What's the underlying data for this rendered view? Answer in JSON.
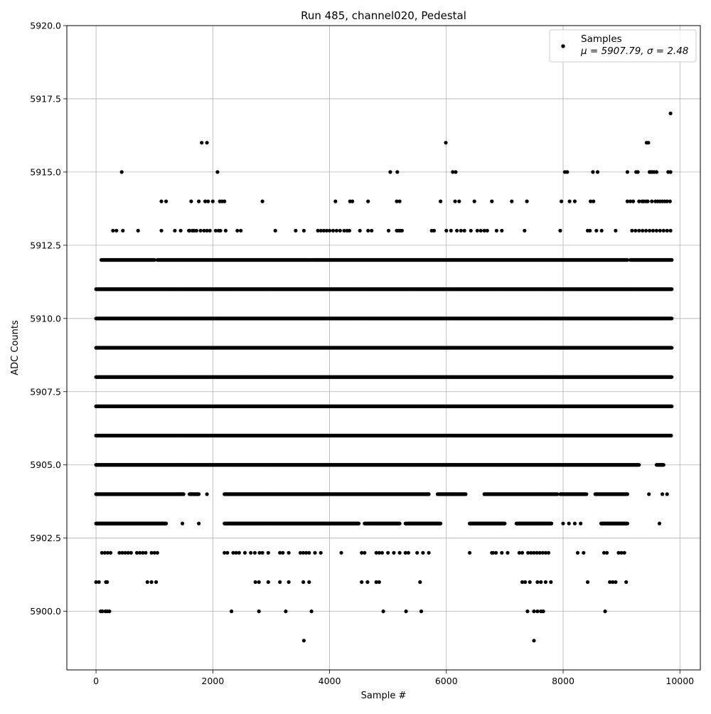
{
  "chart_data": {
    "type": "scatter",
    "title": "Run 485, channel020, Pedestal",
    "xlabel": "Sample #",
    "ylabel": "ADC Counts",
    "xlim": [
      -500,
      10350
    ],
    "ylim": [
      5898,
      5920
    ],
    "x_ticks": [
      0,
      2000,
      4000,
      6000,
      8000,
      10000
    ],
    "x_tick_labels": [
      "0",
      "2000",
      "4000",
      "6000",
      "8000",
      "10000"
    ],
    "y_ticks": [
      5900.0,
      5902.5,
      5905.0,
      5907.5,
      5910.0,
      5912.5,
      5915.0,
      5917.5,
      5920.0
    ],
    "y_tick_labels": [
      "5900.0",
      "5902.5",
      "5905.0",
      "5907.5",
      "5910.0",
      "5912.5",
      "5915.0",
      "5917.5",
      "5920.0"
    ],
    "grid": true,
    "legend_position": "top-right",
    "marker_color": "#000000",
    "series": [
      {
        "name": "Samples",
        "legend_stats": "μ = 5907.79, σ = 2.48",
        "level_coverage": [
          {
            "y": 5917,
            "x": [
              9840
            ]
          },
          {
            "y": 5916,
            "x": [
              1810,
              1900,
              5990,
              9430,
              9460
            ]
          },
          {
            "y": 5915,
            "x": [
              440,
              2080,
              5040,
              5160,
              6110,
              6160,
              8030,
              8070,
              8510,
              8590,
              9100,
              9250,
              9280,
              9480,
              9500,
              9530,
              9560,
              9600,
              9800,
              9840
            ]
          },
          {
            "y": 5914,
            "x": [
              1120,
              1200,
              1630,
              1760,
              1870,
              1920,
              2000,
              2120,
              2160,
              2200,
              2850,
              4100,
              4350,
              4390,
              4660,
              5150,
              5200,
              5900,
              6150,
              6220,
              6480,
              6780,
              7120,
              7380,
              7970,
              8110,
              8200,
              8470,
              8520,
              9100,
              9150,
              9200,
              9300,
              9350,
              9380,
              9420,
              9450,
              9520,
              9580,
              9620,
              9660,
              9700,
              9740,
              9780,
              9830
            ]
          },
          {
            "y": 5913,
            "x": [
              290,
              350,
              460,
              720,
              1120,
              1350,
              1450,
              1590,
              1600,
              1650,
              1680,
              1720,
              1790,
              1850,
              1900,
              1950,
              2050,
              2100,
              2130,
              2220,
              2420,
              2480,
              3070,
              3420,
              3560,
              3800,
              3850,
              3900,
              3950,
              4000,
              4060,
              4120,
              4180,
              4250,
              4300,
              4340,
              4520,
              4660,
              4720,
              5010,
              5150,
              5180,
              5210,
              5240,
              5750,
              5790,
              6000,
              6080,
              6180,
              6250,
              6310,
              6420,
              6530,
              6590,
              6650,
              6700,
              6860,
              6950,
              7340,
              7950,
              8420,
              8460,
              8570,
              8660,
              8900,
              9180,
              9240,
              9300,
              9360,
              9420,
              9480,
              9540,
              9600,
              9660,
              9720,
              9780,
              9840
            ]
          },
          {
            "y": 5912,
            "x": [
              [
                90,
                1000
              ],
              [
                1050,
                3700
              ],
              [
                3720,
                9100
              ],
              [
                9150,
                9860
              ]
            ]
          },
          {
            "y": 5911,
            "x": [
              [
                0,
                9860
              ]
            ]
          },
          {
            "y": 5910,
            "x": [
              [
                0,
                9860
              ]
            ]
          },
          {
            "y": 5909,
            "x": [
              [
                0,
                9860
              ]
            ]
          },
          {
            "y": 5908,
            "x": [
              [
                0,
                9860
              ]
            ]
          },
          {
            "y": 5907,
            "x": [
              [
                0,
                9860
              ]
            ]
          },
          {
            "y": 5906,
            "x": [
              [
                0,
                9850
              ]
            ]
          },
          {
            "y": 5905,
            "x": [
              [
                0,
                9300
              ],
              [
                9600,
                9720
              ]
            ]
          },
          {
            "y": 5904,
            "x": [
              [
                0,
                1500
              ],
              [
                1600,
                1760
              ],
              1900,
              [
                2200,
                5700
              ],
              [
                5850,
                6330
              ],
              [
                6650,
                7900
              ],
              [
                7950,
                8400
              ],
              [
                8550,
                9100
              ],
              9470,
              9700,
              9780
            ]
          },
          {
            "y": 5903,
            "x": [
              [
                0,
                1200
              ],
              1480,
              1760,
              [
                2200,
                4500
              ],
              [
                4600,
                5200
              ],
              [
                5300,
                5900
              ],
              [
                6400,
                7000
              ],
              [
                7200,
                7800
              ],
              8000,
              8100,
              8200,
              8300,
              [
                8650,
                9100
              ],
              9650
            ]
          },
          {
            "y": 5902,
            "x": [
              100,
              150,
              200,
              250,
              400,
              450,
              500,
              550,
              600,
              700,
              750,
              800,
              850,
              950,
              1000,
              1050,
              2200,
              2250,
              2350,
              2400,
              2450,
              2550,
              2650,
              2720,
              2800,
              2850,
              2950,
              3150,
              3200,
              3300,
              3500,
              3550,
              3600,
              3650,
              3750,
              3850,
              4200,
              4550,
              4600,
              4800,
              4850,
              4900,
              5000,
              5100,
              5200,
              5300,
              5350,
              5500,
              5600,
              5700,
              6400,
              6780,
              6800,
              6850,
              6950,
              7050,
              7250,
              7300,
              7400,
              7450,
              7500,
              7550,
              7600,
              7650,
              7700,
              7750,
              8250,
              8350,
              8700,
              8750,
              8950,
              9000,
              9050
            ]
          },
          {
            "y": 5901,
            "x": [
              0,
              50,
              170,
              190,
              880,
              950,
              1030,
              2730,
              2790,
              2950,
              3150,
              3300,
              3550,
              3650,
              4550,
              4650,
              4800,
              4850,
              5550,
              7300,
              7350,
              7430,
              7560,
              7620,
              7700,
              7790,
              8420,
              8800,
              8850,
              8900,
              9080
            ]
          },
          {
            "y": 5900,
            "x": [
              80,
              110,
              160,
              190,
              230,
              2320,
              2790,
              3250,
              3690,
              4920,
              5310,
              5570,
              7390,
              7500,
              7560,
              7620,
              7660,
              8720
            ]
          },
          {
            "y": 5899,
            "x": [
              3560,
              7500
            ]
          }
        ]
      }
    ]
  }
}
